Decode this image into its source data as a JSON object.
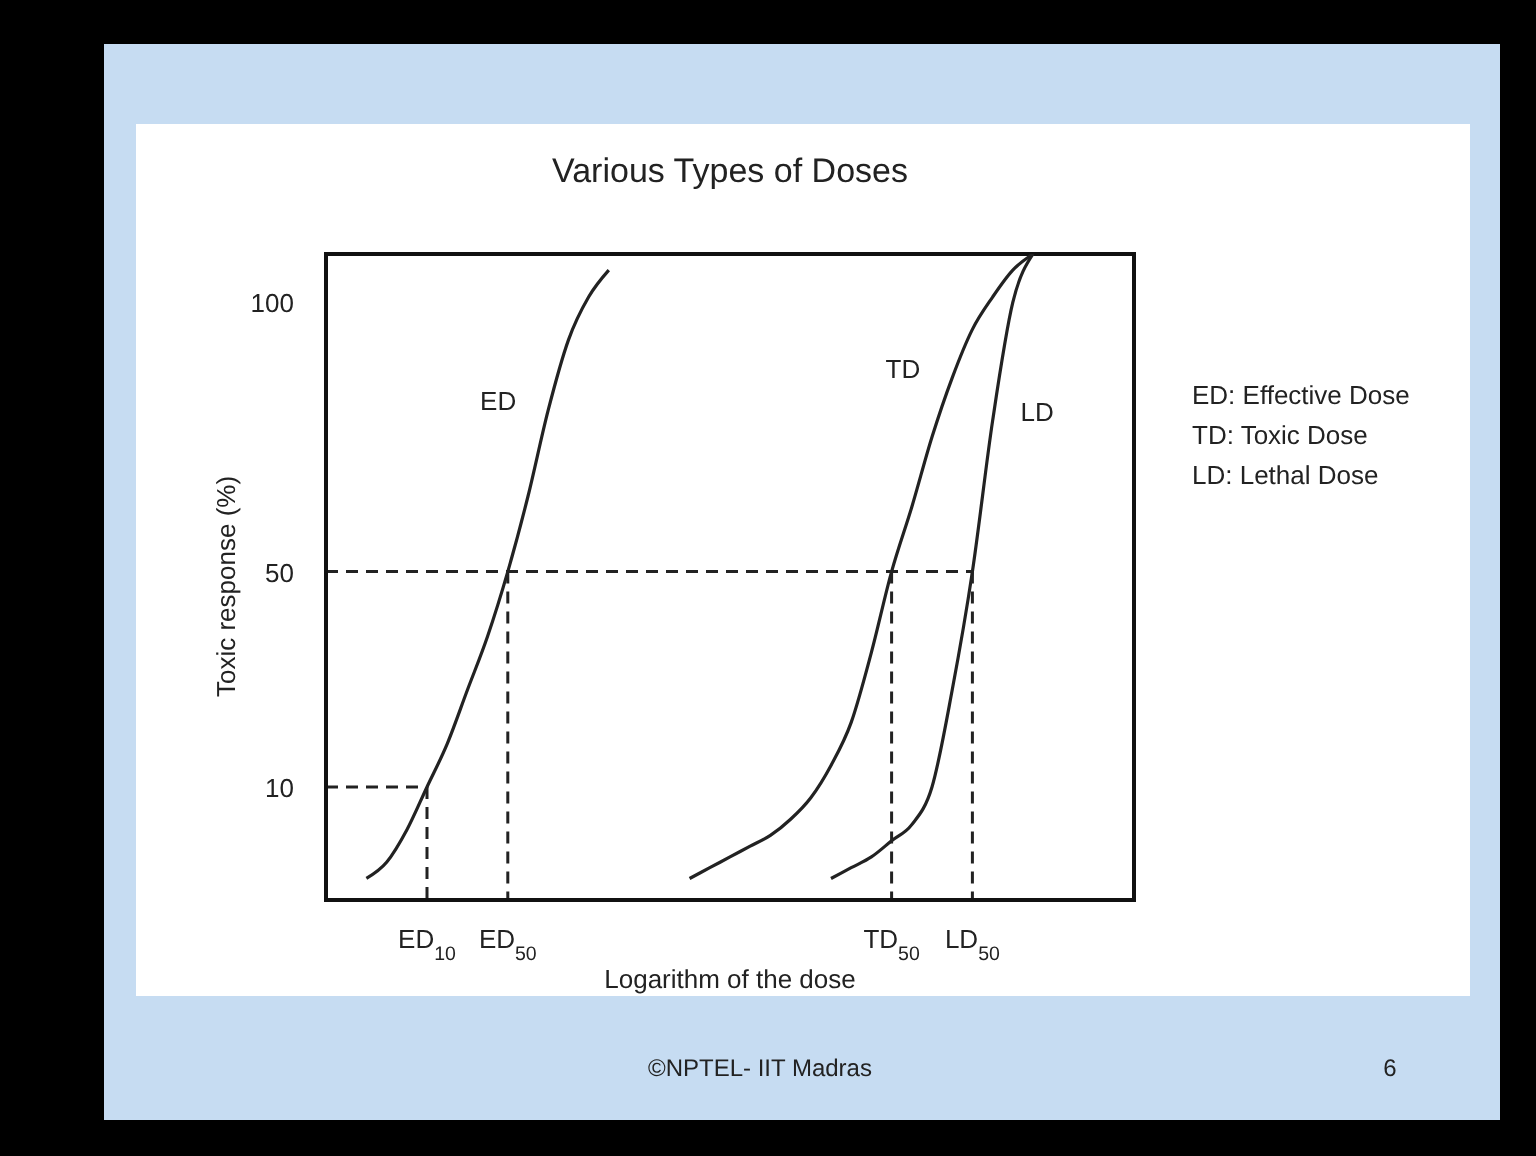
{
  "chart_data": {
    "type": "line",
    "title": "Various Types of Doses",
    "xlabel": "Logarithm of the dose",
    "ylabel": "Toxic response (%)",
    "categories": [
      null,
      null,
      null,
      null,
      null,
      "ED$_{10}$",
      null,
      null,
      null,
      "ED$_{50}$",
      null,
      null,
      null,
      null,
      null,
      null,
      null,
      null,
      null,
      null,
      null,
      null,
      null,
      null,
      null,
      null,
      null,
      null,
      "TD$_{50}$",
      null,
      null,
      null,
      "LD$_{50}$",
      null,
      null,
      null,
      null,
      null,
      null,
      null,
      null
    ],
    "ylim": [
      -11,
      109
    ],
    "yticks": [
      10,
      50,
      100
    ],
    "marker": "none",
    "series": [
      {
        "name": "ED",
        "color": "#222222",
        "values": [
          null,
          null,
          -7,
          -4,
          2,
          10,
          18,
          28,
          38,
          50,
          64,
          80,
          93,
          101,
          106,
          null,
          null,
          null,
          null,
          null,
          null,
          null,
          null,
          null,
          null,
          null,
          null,
          null,
          null,
          null,
          null,
          null,
          null,
          null,
          null,
          null,
          null,
          null,
          null,
          null,
          null
        ]
      },
      {
        "name": "TD",
        "color": "#222222",
        "values": [
          null,
          null,
          null,
          null,
          null,
          null,
          null,
          null,
          null,
          null,
          null,
          null,
          null,
          null,
          null,
          null,
          null,
          null,
          -7,
          -5,
          -3,
          -1,
          1,
          4,
          8,
          14,
          22,
          35,
          50,
          62,
          75,
          86,
          95,
          101,
          106,
          109,
          null,
          null,
          null,
          null,
          null
        ]
      },
      {
        "name": "LD",
        "color": "#222222",
        "values": [
          null,
          null,
          null,
          null,
          null,
          null,
          null,
          null,
          null,
          null,
          null,
          null,
          null,
          null,
          null,
          null,
          null,
          null,
          null,
          null,
          null,
          null,
          null,
          null,
          null,
          -7,
          -5,
          -3,
          0,
          3,
          10,
          28,
          50,
          78,
          100,
          109,
          null,
          null,
          null,
          null,
          null
        ]
      },
      {
        "color": "#222222",
        "line_style": "dashed",
        "values": [
          10,
          10,
          10,
          10,
          10,
          10,
          null,
          null,
          null,
          null,
          null,
          null,
          null,
          null,
          null,
          null,
          null,
          null,
          null,
          null,
          null,
          null,
          null,
          null,
          null,
          null,
          null,
          null,
          null,
          null,
          null,
          null,
          null,
          null,
          null,
          null,
          null,
          null,
          null,
          null,
          null
        ]
      },
      {
        "color": "#222222",
        "line_style": "dashed",
        "values": [
          50,
          50,
          50,
          50,
          50,
          50,
          50,
          50,
          50,
          50,
          50,
          50,
          50,
          50,
          50,
          50,
          50,
          50,
          50,
          50,
          50,
          50,
          50,
          50,
          50,
          50,
          50,
          50,
          50,
          50,
          50,
          50,
          50,
          null,
          null,
          null,
          null,
          null,
          null,
          null,
          null
        ]
      },
      {
        "color": "#222222",
        "line_style": "dashed",
        "x": [
          "ED$_{10}$",
          "ED$_{10}$"
        ],
        "values": [
          10,
          -11
        ]
      },
      {
        "color": "#222222",
        "line_style": "dashed",
        "x": [
          "ED$_{50}$",
          "ED$_{50}$"
        ],
        "values": [
          50,
          -11
        ]
      },
      {
        "color": "#222222",
        "line_style": "dashed",
        "x": [
          "TD$_{50}$",
          "TD$_{50}$"
        ],
        "values": [
          50,
          -11
        ]
      },
      {
        "color": "#222222",
        "line_style": "dashed",
        "x": [
          "LD$_{50}$",
          "LD$_{50}$"
        ],
        "values": [
          50,
          -11
        ]
      }
    ],
    "annotations": [
      "ED: Effective Dose",
      "TD: Toxic Dose",
      "LD: Lethal Dose",
      "©NPTEL- IIT Madras",
      "6"
    ]
  }
}
